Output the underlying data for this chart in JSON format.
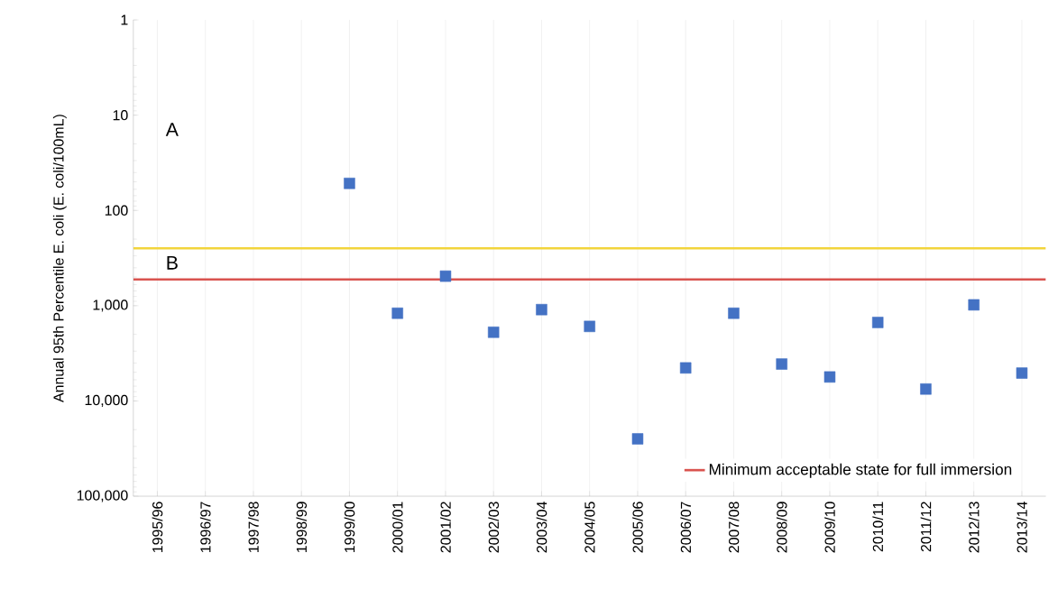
{
  "chart_data": {
    "type": "scatter",
    "categories": [
      "1995/96",
      "1996/97",
      "1997/98",
      "1998/99",
      "1999/00",
      "2000/01",
      "2001/02",
      "2002/03",
      "2003/04",
      "2004/05",
      "2005/06",
      "2006/07",
      "2007/08",
      "2008/09",
      "2009/10",
      "2010/11",
      "2011/12",
      "2012/13",
      "2013/14"
    ],
    "values": [
      null,
      null,
      null,
      null,
      52,
      1200,
      490,
      1900,
      1100,
      1650,
      25000,
      4500,
      1200,
      4100,
      5600,
      1500,
      7500,
      980,
      5100
    ],
    "color": "#4472c4",
    "marker": "square",
    "log": "y",
    "ylim": [
      100000,
      1
    ],
    "yticks": [
      1,
      10,
      100,
      {
        "value": 1000,
        "label": "1,000"
      },
      {
        "value": 10000,
        "label": "10,000"
      },
      {
        "value": 100000,
        "label": "100,000"
      }
    ],
    "ylabel": "Annual 95th Percentile E. coli (E. coli/100mL)",
    "grid": "x",
    "ref_lines": [
      {
        "axis": "y",
        "value": 250,
        "color": "#f2d53c"
      },
      {
        "axis": "y",
        "value": 530,
        "color": "#d9534f",
        "label": "Minimum acceptable state for full immersion"
      }
    ],
    "annotations": [
      "A",
      "B"
    ],
    "legend": "bottom right"
  }
}
